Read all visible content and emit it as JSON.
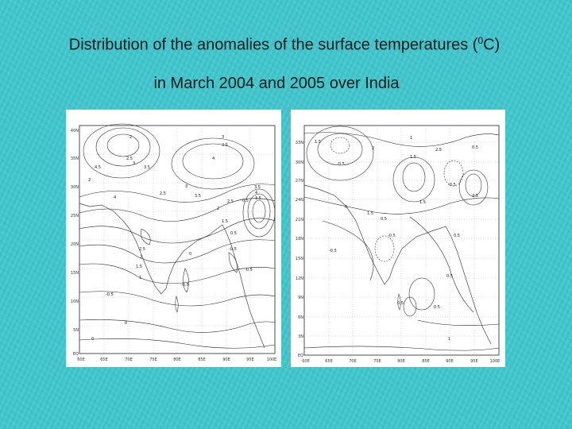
{
  "slide": {
    "title_line1": "Distribution of the anomalies of the surface temperatures (",
    "title_superscript": "0",
    "title_line1_end": "C)",
    "title_line2": "in March 2004 and 2005 over India"
  },
  "map_left": {
    "y_ticks": [
      "40N",
      "35N",
      "30N",
      "25N",
      "20N",
      "15N",
      "10N",
      "5N",
      "EQ"
    ],
    "x_ticks": [
      "60E",
      "65E",
      "70E",
      "75E",
      "80E",
      "85E",
      "90E",
      "95E",
      "100E"
    ],
    "contour_labels": [
      "2",
      "2.5",
      "3",
      "3.5",
      "4",
      "4.5",
      "3",
      "2.5",
      "3.5",
      "2",
      "4",
      "3",
      "2.5",
      "3.5",
      "4",
      "3.5",
      "1.5",
      "2",
      "2.5",
      "0.5",
      "1",
      "2",
      "2.5",
      "1.5",
      "-0.5",
      "0",
      "-0.5",
      "-0.5",
      "0.5",
      "0",
      "0",
      "-0.5"
    ]
  },
  "map_right": {
    "y_ticks": [
      "33N",
      "30N",
      "27N",
      "24N",
      "21N",
      "18N",
      "15N",
      "12N",
      "9N",
      "6N",
      "3N",
      "EQ"
    ],
    "x_ticks": [
      "60E",
      "65E",
      "70E",
      "75E",
      "80E",
      "85E",
      "90E",
      "95E",
      "100E"
    ],
    "contour_labels": [
      "1.5",
      "2",
      "1",
      "1.5",
      "-0.5",
      "0",
      "1.5",
      "2.5",
      "0.5",
      "-0.5",
      "2.5",
      "0.5",
      "1.5",
      "-0.5",
      "0.5",
      "0.5",
      "-0.5",
      "0.5",
      "0.5",
      "1"
    ]
  }
}
